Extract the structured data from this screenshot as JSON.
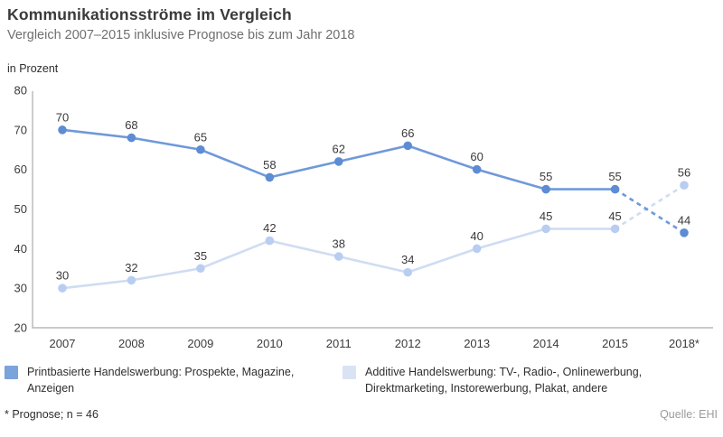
{
  "header": {
    "title": "Kommunikationsströme im Vergleich",
    "subtitle": "Vergleich 2007–2015 inklusive Prognose bis zum Jahr 2018"
  },
  "axis": {
    "unit_label": "in Prozent"
  },
  "colors": {
    "print_line": "#6f99d9",
    "print_marker": "#5d8cd4",
    "print_swatch": "#7ba3dc",
    "additive_line": "#cfdcf3",
    "additive_marker": "#b9cdf0",
    "additive_swatch": "#d9e3f4",
    "axis_line": "#ababab",
    "tick_text": "#3b3b3b",
    "value_text": "#3a3a3a"
  },
  "chart_data": {
    "type": "line",
    "categories": [
      "2007",
      "2008",
      "2009",
      "2010",
      "2011",
      "2012",
      "2013",
      "2014",
      "2015",
      "2018*"
    ],
    "series": [
      {
        "name": "Printbasierte Handelswerbung: Prospekte, Magazine, Anzeigen",
        "values": [
          70,
          68,
          65,
          58,
          62,
          66,
          60,
          55,
          55,
          44
        ],
        "color": "#6f99d9",
        "marker_color": "#5d8cd4",
        "forecast_from_index": 8
      },
      {
        "name": "Additive Handelswerbung: TV-, Radio-, Onlinewerbung, Direktmarketing, Instorewerbung, Plakat, andere",
        "values": [
          30,
          32,
          35,
          42,
          38,
          34,
          40,
          45,
          45,
          56
        ],
        "color": "#cfdcf3",
        "marker_color": "#b9cdf0",
        "forecast_from_index": 8
      }
    ],
    "title": "Kommunikationsströme im Vergleich",
    "xlabel": "",
    "ylabel": "in Prozent",
    "ylim": [
      20,
      80
    ],
    "yticks": [
      20,
      30,
      40,
      50,
      60,
      70,
      80
    ],
    "grid": false,
    "legend_position": "bottom",
    "notes": "Values from 2015 to 2018 are forecast (dashed lines)"
  },
  "footer": {
    "footnote": "* Prognose; n = 46",
    "source": "Quelle: EHI"
  }
}
